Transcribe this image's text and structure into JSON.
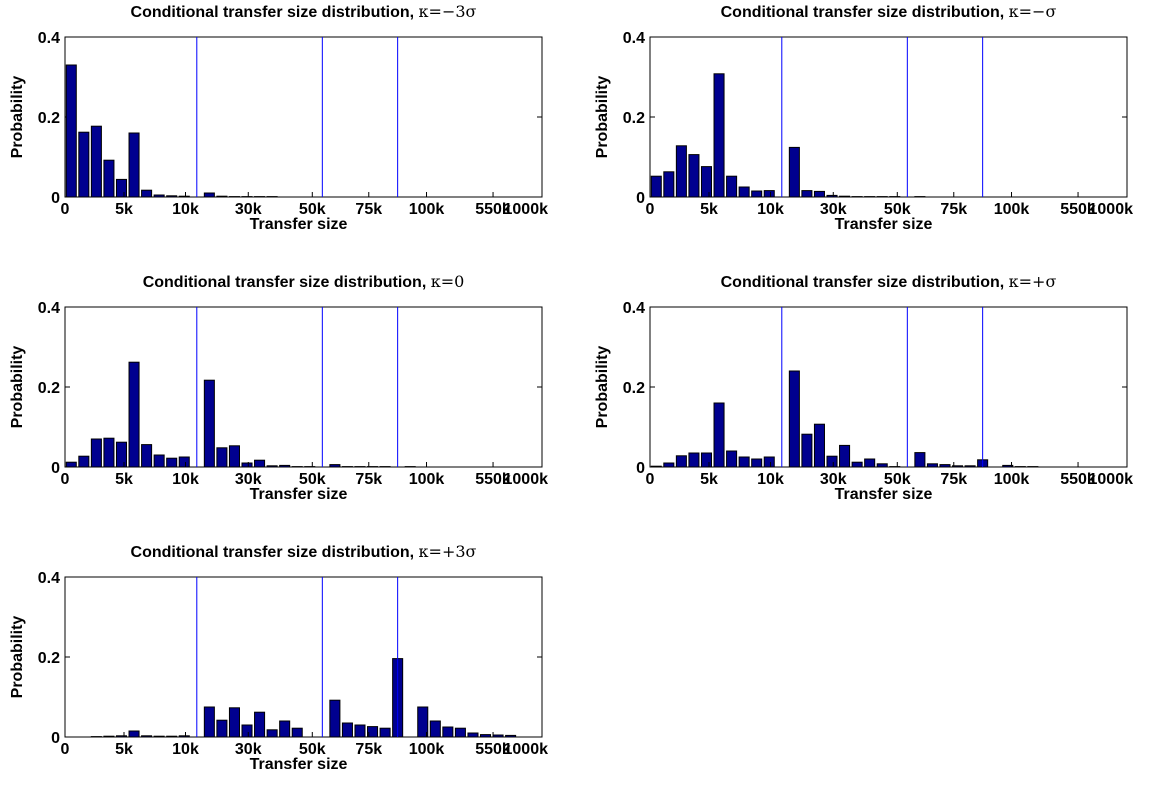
{
  "chart_data": [
    {
      "type": "bar",
      "title": "Conditional transfer size distribution, κ=−3σ",
      "title_prefix": "Conditional transfer size distribution, ",
      "title_kappa": "κ=−3σ",
      "xlabel": "Transfer size",
      "ylabel": "Probability",
      "ylim": [
        0,
        0.4
      ],
      "yticks": [
        "0",
        "0.2",
        "0.4"
      ],
      "xticks": [
        "0",
        "5k",
        "10k",
        "30k",
        "50k",
        "75k",
        "100k",
        "550k",
        "1000k"
      ],
      "separators_after_bin": [
        10,
        20,
        26
      ],
      "values": [
        0.33,
        0.162,
        0.177,
        0.092,
        0.044,
        0.16,
        0.017,
        0.005,
        0.003,
        0.002,
        0,
        0.01,
        0.002,
        0.001,
        0.001,
        0.001,
        0.001,
        0,
        0,
        0,
        0,
        0,
        0,
        0,
        0,
        0,
        0,
        0,
        0,
        0,
        0,
        0
      ]
    },
    {
      "type": "bar",
      "title": "Conditional transfer size distribution, κ=−σ",
      "title_prefix": "Conditional transfer size distribution, ",
      "title_kappa": "κ=−σ",
      "xlabel": "Transfer size",
      "ylabel": "Probability",
      "ylim": [
        0,
        0.4
      ],
      "yticks": [
        "0",
        "0.2",
        "0.4"
      ],
      "xticks": [
        "0",
        "5k",
        "10k",
        "30k",
        "50k",
        "75k",
        "100k",
        "550k",
        "1000k"
      ],
      "separators_after_bin": [
        10,
        20,
        26
      ],
      "values": [
        0.052,
        0.063,
        0.128,
        0.106,
        0.076,
        0.308,
        0.052,
        0.025,
        0.015,
        0.016,
        0,
        0.124,
        0.016,
        0.014,
        0.004,
        0.002,
        0.001,
        0.001,
        0.001,
        0.001,
        0,
        0.001,
        0,
        0,
        0,
        0,
        0,
        0,
        0,
        0,
        0,
        0
      ]
    },
    {
      "type": "bar",
      "title": "Conditional transfer size distribution, κ=0",
      "title_prefix": "Conditional transfer size distribution, ",
      "title_kappa": "κ=0",
      "xlabel": "Transfer size",
      "ylabel": "Probability",
      "ylim": [
        0,
        0.4
      ],
      "yticks": [
        "0",
        "0.2",
        "0.4"
      ],
      "xticks": [
        "0",
        "5k",
        "10k",
        "30k",
        "50k",
        "75k",
        "100k",
        "550k",
        "1000k"
      ],
      "separators_after_bin": [
        10,
        20,
        26
      ],
      "values": [
        0.012,
        0.027,
        0.07,
        0.072,
        0.062,
        0.262,
        0.056,
        0.03,
        0.022,
        0.025,
        0,
        0.217,
        0.048,
        0.053,
        0.01,
        0.017,
        0.003,
        0.004,
        0.001,
        0.001,
        0,
        0.006,
        0.001,
        0.001,
        0.001,
        0.001,
        0,
        0.001,
        0,
        0,
        0,
        0
      ]
    },
    {
      "type": "bar",
      "title": "Conditional transfer size distribution, κ=+σ",
      "title_prefix": "Conditional transfer size distribution, ",
      "title_kappa": "κ=+σ",
      "xlabel": "Transfer size",
      "ylabel": "Probability",
      "ylim": [
        0,
        0.4
      ],
      "yticks": [
        "0",
        "0.2",
        "0.4"
      ],
      "xticks": [
        "0",
        "5k",
        "10k",
        "30k",
        "50k",
        "75k",
        "100k",
        "550k",
        "1000k"
      ],
      "separators_after_bin": [
        10,
        20,
        26
      ],
      "values": [
        0.002,
        0.01,
        0.028,
        0.035,
        0.035,
        0.16,
        0.04,
        0.025,
        0.02,
        0.025,
        0,
        0.24,
        0.082,
        0.107,
        0.027,
        0.054,
        0.012,
        0.02,
        0.008,
        0.001,
        0,
        0.036,
        0.008,
        0.006,
        0.003,
        0.003,
        0.018,
        0,
        0.004,
        0.001,
        0.001,
        0
      ]
    },
    {
      "type": "bar",
      "title": "Conditional transfer size distribution, κ=+3σ",
      "title_prefix": "Conditional transfer size distribution, ",
      "title_kappa": "κ=+3σ",
      "xlabel": "Transfer size",
      "ylabel": "Probability",
      "ylim": [
        0,
        0.4
      ],
      "yticks": [
        "0",
        "0.2",
        "0.4"
      ],
      "xticks": [
        "0",
        "5k",
        "10k",
        "30k",
        "50k",
        "75k",
        "100k",
        "550k",
        "1000k"
      ],
      "separators_after_bin": [
        10,
        20,
        26
      ],
      "values": [
        0,
        0,
        0.001,
        0.002,
        0.003,
        0.015,
        0.003,
        0.002,
        0.002,
        0.003,
        0,
        0.075,
        0.042,
        0.073,
        0.03,
        0.062,
        0.018,
        0.04,
        0.022,
        0,
        0,
        0.092,
        0.035,
        0.03,
        0.026,
        0.022,
        0.196,
        0,
        0.075,
        0.04,
        0.025,
        0.022,
        0.01,
        0.006,
        0.005,
        0.004
      ]
    }
  ]
}
